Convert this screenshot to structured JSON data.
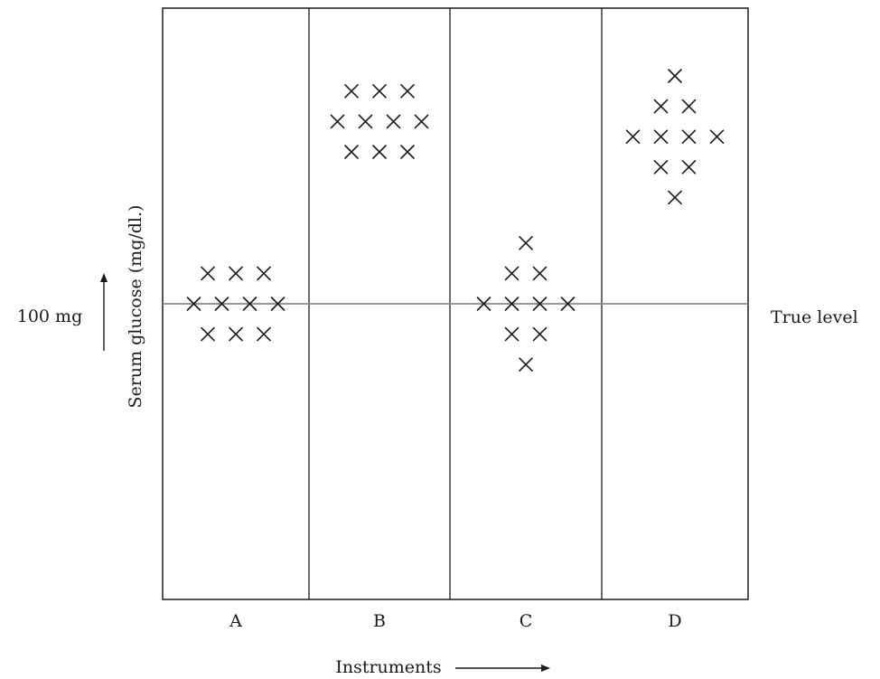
{
  "chart_data": {
    "type": "scatter",
    "title": "",
    "xlabel": "Instruments",
    "ylabel": "Serum glucose (mg/dl.)",
    "categories": [
      "A",
      "B",
      "C",
      "D"
    ],
    "reference_line": {
      "value": 100,
      "value_label": "100 mg",
      "label": "True level"
    },
    "ylim": [
      80,
      120
    ],
    "grid": false,
    "marker": "×",
    "series": [
      {
        "category": "A",
        "points": [
          {
            "x": -1,
            "y": 102
          },
          {
            "x": 0,
            "y": 102
          },
          {
            "x": 1,
            "y": 102
          },
          {
            "x": -1.5,
            "y": 100
          },
          {
            "x": -0.5,
            "y": 100
          },
          {
            "x": 0.5,
            "y": 100
          },
          {
            "x": 1.5,
            "y": 100
          },
          {
            "x": -1,
            "y": 98
          },
          {
            "x": 0,
            "y": 98
          },
          {
            "x": 1,
            "y": 98
          }
        ]
      },
      {
        "category": "B",
        "points": [
          {
            "x": -1,
            "y": 114
          },
          {
            "x": 0,
            "y": 114
          },
          {
            "x": 1,
            "y": 114
          },
          {
            "x": -1.5,
            "y": 112
          },
          {
            "x": -0.5,
            "y": 112
          },
          {
            "x": 0.5,
            "y": 112
          },
          {
            "x": 1.5,
            "y": 112
          },
          {
            "x": -1,
            "y": 110
          },
          {
            "x": 0,
            "y": 110
          },
          {
            "x": 1,
            "y": 110
          }
        ]
      },
      {
        "category": "C",
        "points": [
          {
            "x": 0,
            "y": 104
          },
          {
            "x": -0.5,
            "y": 102
          },
          {
            "x": 0.5,
            "y": 102
          },
          {
            "x": -1.5,
            "y": 100
          },
          {
            "x": -0.5,
            "y": 100
          },
          {
            "x": 0.5,
            "y": 100
          },
          {
            "x": 1.5,
            "y": 100
          },
          {
            "x": -0.5,
            "y": 98
          },
          {
            "x": 0.5,
            "y": 98
          },
          {
            "x": 0,
            "y": 96
          }
        ]
      },
      {
        "category": "D",
        "points": [
          {
            "x": 0,
            "y": 115
          },
          {
            "x": -0.5,
            "y": 113
          },
          {
            "x": 0.5,
            "y": 113
          },
          {
            "x": -1.5,
            "y": 111
          },
          {
            "x": -0.5,
            "y": 111
          },
          {
            "x": 0.5,
            "y": 111
          },
          {
            "x": 1.5,
            "y": 111
          },
          {
            "x": -0.5,
            "y": 109
          },
          {
            "x": 0.5,
            "y": 109
          },
          {
            "x": 0,
            "y": 107
          }
        ]
      }
    ]
  }
}
